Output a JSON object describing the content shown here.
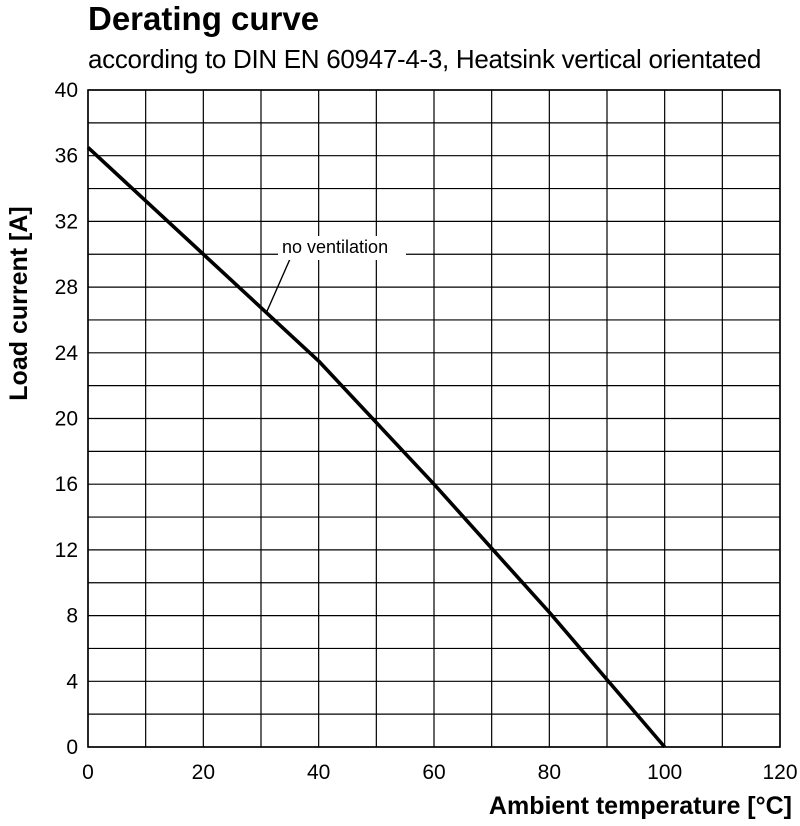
{
  "chart_data": {
    "type": "line",
    "title": "Derating curve",
    "subtitle": "according to DIN EN 60947-4-3, Heatsink vertical orientated",
    "xlabel": "Ambient temperature [°C]",
    "ylabel": "Load current [A]",
    "xlim": [
      0,
      120
    ],
    "ylim": [
      0,
      40
    ],
    "x_ticks": [
      "0",
      "20",
      "40",
      "60",
      "80",
      "100",
      "120"
    ],
    "y_ticks": [
      "0",
      "4",
      "8",
      "12",
      "16",
      "20",
      "24",
      "28",
      "32",
      "36",
      "40"
    ],
    "grid": true,
    "series": [
      {
        "name": "no ventilation",
        "x": [
          0,
          20,
          40,
          60,
          80,
          100
        ],
        "y": [
          36.5,
          30,
          23.5,
          16,
          8.2,
          0
        ]
      }
    ],
    "annotations": [
      {
        "text": "no ventilation",
        "x": 31,
        "y": 26.5
      }
    ]
  }
}
